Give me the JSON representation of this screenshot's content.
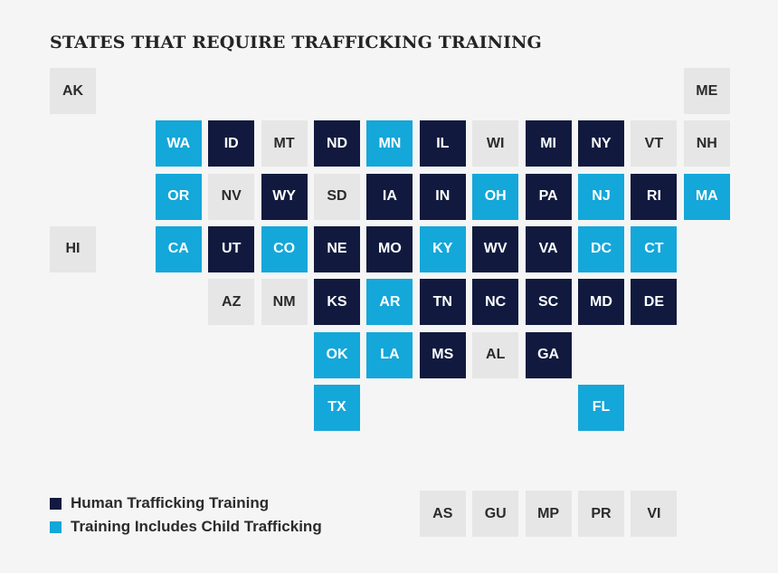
{
  "title": "STATES THAT REQUIRE TRAFFICKING TRAINING",
  "colors": {
    "none": "#e6e6e6",
    "human": "#111a3e",
    "child": "#14a7d9"
  },
  "legend": [
    {
      "key": "human",
      "label": "Human Trafficking Training"
    },
    {
      "key": "child",
      "label": "Training Includes Child Trafficking"
    }
  ],
  "states": [
    {
      "abbr": "AK",
      "status": "none"
    },
    {
      "abbr": "ME",
      "status": "none"
    },
    {
      "abbr": "WA",
      "status": "child"
    },
    {
      "abbr": "ID",
      "status": "human"
    },
    {
      "abbr": "MT",
      "status": "none"
    },
    {
      "abbr": "ND",
      "status": "human"
    },
    {
      "abbr": "MN",
      "status": "child"
    },
    {
      "abbr": "IL",
      "status": "human"
    },
    {
      "abbr": "WI",
      "status": "none"
    },
    {
      "abbr": "MI",
      "status": "human"
    },
    {
      "abbr": "NY",
      "status": "human"
    },
    {
      "abbr": "VT",
      "status": "none"
    },
    {
      "abbr": "NH",
      "status": "none"
    },
    {
      "abbr": "OR",
      "status": "child"
    },
    {
      "abbr": "NV",
      "status": "none"
    },
    {
      "abbr": "WY",
      "status": "human"
    },
    {
      "abbr": "SD",
      "status": "none"
    },
    {
      "abbr": "IA",
      "status": "human"
    },
    {
      "abbr": "IN",
      "status": "human"
    },
    {
      "abbr": "OH",
      "status": "child"
    },
    {
      "abbr": "PA",
      "status": "human"
    },
    {
      "abbr": "NJ",
      "status": "child"
    },
    {
      "abbr": "RI",
      "status": "human"
    },
    {
      "abbr": "MA",
      "status": "child"
    },
    {
      "abbr": "HI",
      "status": "none"
    },
    {
      "abbr": "CA",
      "status": "child"
    },
    {
      "abbr": "UT",
      "status": "human"
    },
    {
      "abbr": "CO",
      "status": "child"
    },
    {
      "abbr": "NE",
      "status": "human"
    },
    {
      "abbr": "MO",
      "status": "human"
    },
    {
      "abbr": "KY",
      "status": "child"
    },
    {
      "abbr": "WV",
      "status": "human"
    },
    {
      "abbr": "VA",
      "status": "human"
    },
    {
      "abbr": "DC",
      "status": "child"
    },
    {
      "abbr": "CT",
      "status": "child"
    },
    {
      "abbr": "AZ",
      "status": "none"
    },
    {
      "abbr": "NM",
      "status": "none"
    },
    {
      "abbr": "KS",
      "status": "human"
    },
    {
      "abbr": "AR",
      "status": "child"
    },
    {
      "abbr": "TN",
      "status": "human"
    },
    {
      "abbr": "NC",
      "status": "human"
    },
    {
      "abbr": "SC",
      "status": "human"
    },
    {
      "abbr": "MD",
      "status": "human"
    },
    {
      "abbr": "DE",
      "status": "human"
    },
    {
      "abbr": "OK",
      "status": "child"
    },
    {
      "abbr": "LA",
      "status": "child"
    },
    {
      "abbr": "MS",
      "status": "human"
    },
    {
      "abbr": "AL",
      "status": "none"
    },
    {
      "abbr": "GA",
      "status": "human"
    },
    {
      "abbr": "TX",
      "status": "child"
    },
    {
      "abbr": "FL",
      "status": "child"
    },
    {
      "abbr": "AS",
      "status": "none"
    },
    {
      "abbr": "GU",
      "status": "none"
    },
    {
      "abbr": "MP",
      "status": "none"
    },
    {
      "abbr": "PR",
      "status": "none"
    },
    {
      "abbr": "VI",
      "status": "none"
    }
  ]
}
